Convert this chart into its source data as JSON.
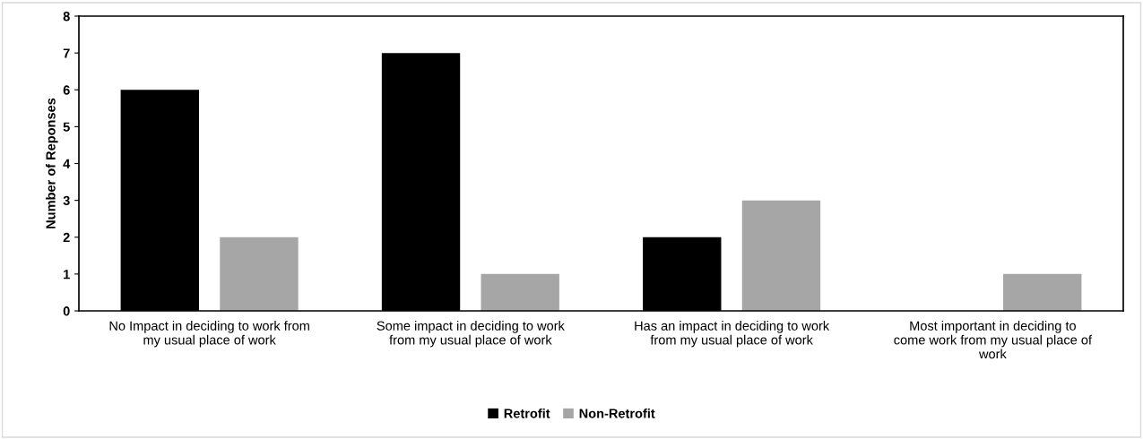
{
  "chart_data": {
    "type": "bar",
    "ylabel": "Number of Reponses",
    "categories": [
      "No Impact in deciding to work from\nmy usual place of work",
      "Some impact in deciding to work\nfrom my usual place of work",
      "Has an impact in deciding to work\nfrom my usual place of work",
      "Most important in deciding to\ncome work from my usual place of\nwork"
    ],
    "series": [
      {
        "name": "Retrofit",
        "color": "#000000",
        "values": [
          6,
          7,
          2,
          0
        ]
      },
      {
        "name": "Non-Retrofit",
        "color": "#a6a6a6",
        "values": [
          2,
          1,
          3,
          1
        ]
      }
    ],
    "ylim": [
      0,
      8
    ],
    "yticks": [
      0,
      1,
      2,
      3,
      4,
      5,
      6,
      7,
      8
    ],
    "grid": false,
    "legend": "bottom"
  }
}
